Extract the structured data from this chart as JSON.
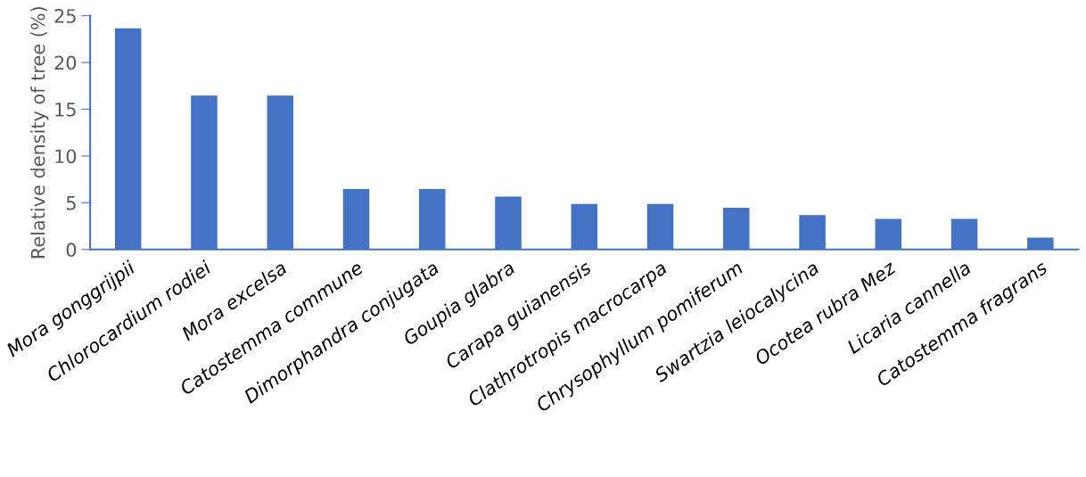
{
  "chart_data": {
    "type": "bar",
    "ylabel": "Relative density of tree (%)",
    "categories": [
      "Mora gonggrijpii",
      "Chlorocardium rodiei",
      "Mora excelsa",
      "Catostemma commune",
      "Dimorphandra conjugata",
      "Goupia glabra",
      "Carapa guianensis",
      "Clathrotropis macrocarpa",
      "Chrysophyllum pomiferum",
      "Swartzia leiocalycina",
      "Ocotea rubra Mez",
      "Licaria cannella",
      "Catostemma fragrans"
    ],
    "values": [
      23.6,
      16.4,
      16.4,
      6.4,
      6.4,
      5.6,
      4.8,
      4.8,
      4.4,
      3.6,
      3.2,
      3.2,
      1.2
    ],
    "color": "#4472c4",
    "ylim": [
      0,
      25
    ],
    "yticks": [
      0,
      5,
      10,
      15,
      20,
      25
    ],
    "grid": false,
    "legend": false
  }
}
